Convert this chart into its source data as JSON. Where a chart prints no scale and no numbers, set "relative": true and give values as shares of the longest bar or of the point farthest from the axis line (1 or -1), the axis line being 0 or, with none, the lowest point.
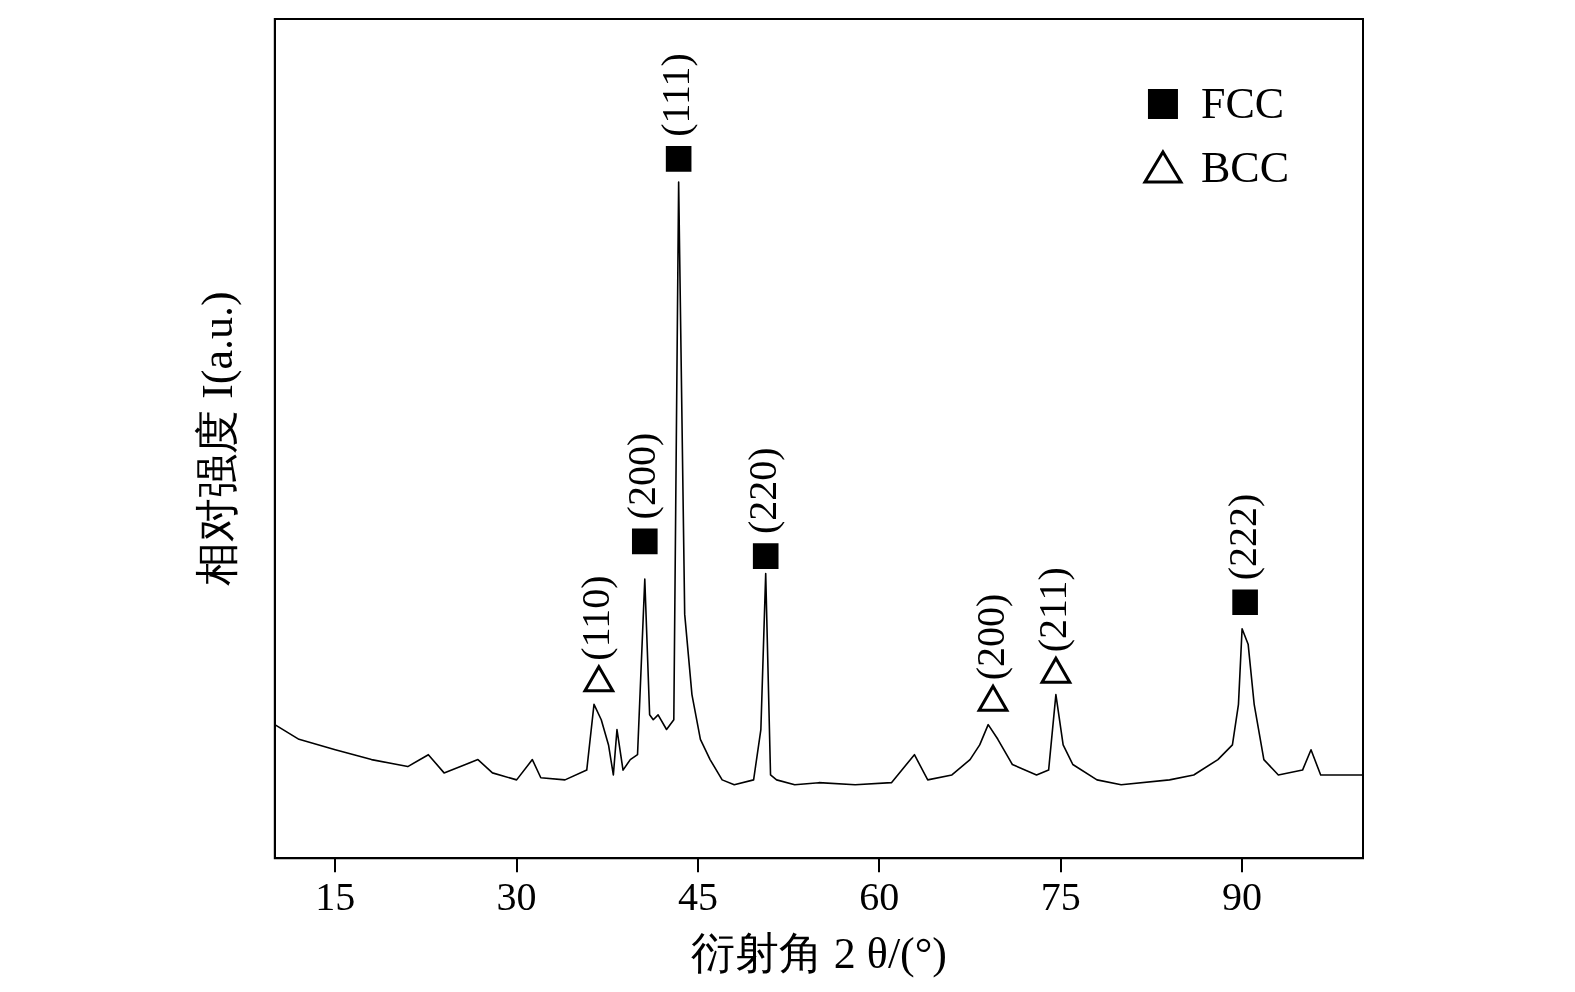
{
  "chart_data": {
    "type": "line",
    "relative": true,
    "xlabel": "衍射角 2 θ/(°)",
    "ylabel": "相对强度 I(a.u.)",
    "xlim": [
      10,
      100
    ],
    "xticks": [
      15,
      30,
      45,
      60,
      75,
      90
    ],
    "grid": false,
    "legend": "top right",
    "series": [
      {
        "color": "#000000",
        "marker": "none",
        "x": [
          10,
          12,
          15,
          18,
          21,
          22.7,
          24,
          26.8,
          28,
          30,
          31.3,
          32,
          34,
          35.8,
          36.4,
          37,
          37.6,
          38,
          38.3,
          38.8,
          39.4,
          40,
          40.6,
          41,
          41.3,
          41.7,
          42.4,
          43,
          43.4,
          43.9,
          44.5,
          45.2,
          46,
          47,
          48,
          49.6,
          50.2,
          50.6,
          51,
          51.5,
          53,
          55,
          58,
          61,
          62.9,
          64,
          66,
          67.5,
          68.3,
          69,
          69.8,
          71,
          73,
          74,
          74.6,
          75.2,
          76,
          78,
          80,
          84,
          86,
          88,
          89.2,
          89.7,
          90,
          90.5,
          91,
          91.8,
          93,
          95,
          95.7,
          96.5,
          98,
          100
        ],
        "values": [
          0.191,
          0.17,
          0.155,
          0.141,
          0.131,
          0.148,
          0.122,
          0.141,
          0.122,
          0.112,
          0.141,
          0.115,
          0.112,
          0.126,
          0.22,
          0.198,
          0.162,
          0.119,
          0.184,
          0.126,
          0.141,
          0.148,
          0.399,
          0.205,
          0.198,
          0.205,
          0.184,
          0.198,
          0.967,
          0.349,
          0.234,
          0.17,
          0.141,
          0.112,
          0.105,
          0.112,
          0.184,
          0.407,
          0.119,
          0.112,
          0.105,
          0.108,
          0.105,
          0.108,
          0.148,
          0.112,
          0.119,
          0.141,
          0.162,
          0.191,
          0.17,
          0.134,
          0.119,
          0.126,
          0.234,
          0.162,
          0.134,
          0.112,
          0.105,
          0.112,
          0.119,
          0.141,
          0.162,
          0.22,
          0.328,
          0.306,
          0.22,
          0.141,
          0.119,
          0.126,
          0.155,
          0.119,
          0.119,
          0.119
        ]
      },
      {
        "type": "scatter",
        "name": "FCC",
        "color": "#000000",
        "marker": "square",
        "x": [
          40.6,
          43.4,
          50.6,
          90.25
        ],
        "values": [
          0.453,
          1.0,
          0.432,
          0.366
        ]
      },
      {
        "type": "scatter",
        "name": "BCC",
        "color": "#000000",
        "marker": "triangle",
        "x": [
          36.8,
          69.4,
          74.6
        ],
        "values": [
          0.251,
          0.223,
          0.263
        ]
      }
    ],
    "annotations": [
      {
        "text": "(110)",
        "x": 36.8,
        "y": 0.251
      },
      {
        "text": "(200)",
        "x": 40.6,
        "y": 0.453
      },
      {
        "text": "(111)",
        "x": 43.4,
        "y": 1.0
      },
      {
        "text": "(220)",
        "x": 50.6,
        "y": 0.432
      },
      {
        "text": "(200)",
        "x": 69.4,
        "y": 0.223
      },
      {
        "text": "(211)",
        "x": 74.6,
        "y": 0.263
      },
      {
        "text": "(222)",
        "x": 90.25,
        "y": 0.366
      }
    ]
  }
}
